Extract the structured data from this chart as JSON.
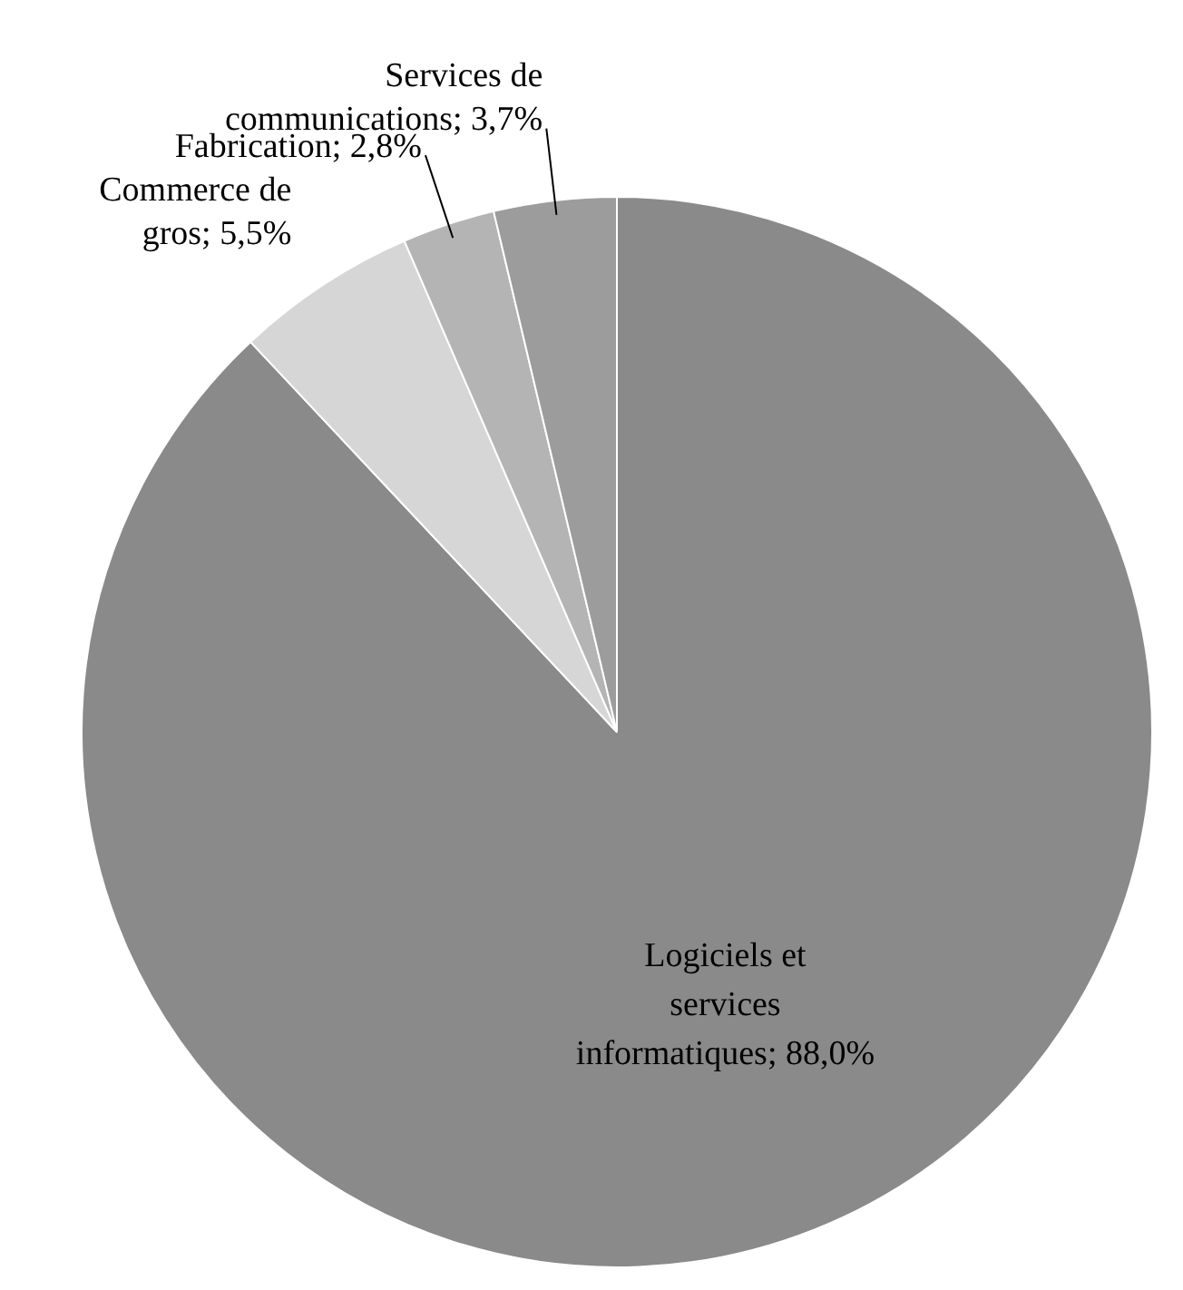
{
  "chart_data": {
    "type": "pie",
    "categories": [
      "Logiciels et services informatiques",
      "Commerce de gros",
      "Fabrication",
      "Services de communications"
    ],
    "values": [
      88.0,
      5.5,
      2.8,
      3.7
    ],
    "colors": [
      "#8a8a8a",
      "#d6d6d6",
      "#b4b4b4",
      "#9c9c9c"
    ],
    "value_labels": [
      "88,0%",
      "5,5%",
      "2,8%",
      "3,7%"
    ],
    "legend": false
  }
}
